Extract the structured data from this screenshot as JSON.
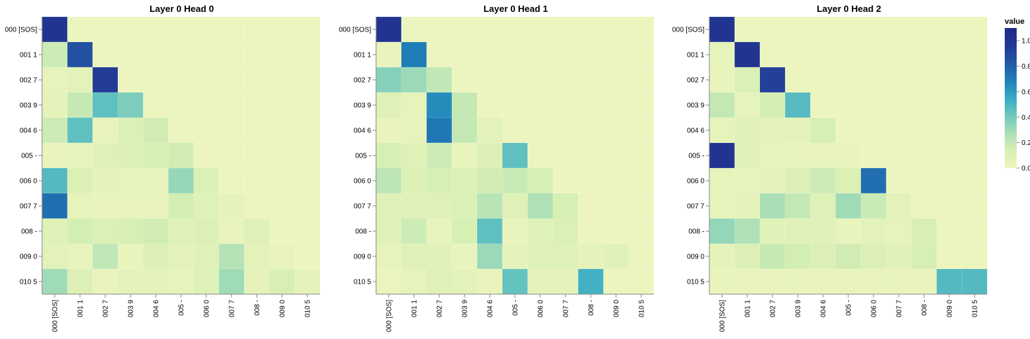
{
  "chart_data": {
    "type": "heatmap",
    "tokens": [
      "000 [SOS]",
      "001 1",
      "002 7",
      "003 9",
      "004 6",
      "005 -",
      "006 0",
      "007 7",
      "008 -",
      "009 0",
      "010 5"
    ],
    "legend": {
      "title": "value",
      "ticks": [
        "1.0",
        "0.8",
        "0.6",
        "0.4",
        "0.2",
        "0.0"
      ],
      "tick_values": [
        1.0,
        0.8,
        0.6,
        0.4,
        0.2,
        0.0
      ],
      "domain": [
        0,
        1.1
      ],
      "colors": [
        "#eff6bf",
        "#d7efb3",
        "#abdfb6",
        "#6fc8be",
        "#37aac4",
        "#1f81b9",
        "#2457a5",
        "#223994",
        "#1e2b85"
      ]
    },
    "panels": [
      {
        "title": "Layer 0 Head 0",
        "values": [
          [
            1.0,
            0.02,
            0.01,
            0.01,
            0.01,
            0.01,
            0.01,
            0.01,
            0.01,
            0.01,
            0.01
          ],
          [
            0.17,
            0.85,
            0.01,
            0.01,
            0.01,
            0.01,
            0.01,
            0.01,
            0.01,
            0.01,
            0.01
          ],
          [
            0.05,
            0.07,
            0.95,
            0.01,
            0.01,
            0.01,
            0.01,
            0.01,
            0.01,
            0.01,
            0.01
          ],
          [
            0.06,
            0.19,
            0.45,
            0.38,
            0.01,
            0.01,
            0.01,
            0.01,
            0.01,
            0.01,
            0.01
          ],
          [
            0.17,
            0.45,
            0.04,
            0.12,
            0.16,
            0.01,
            0.01,
            0.01,
            0.01,
            0.01,
            0.01
          ],
          [
            0.04,
            0.05,
            0.09,
            0.12,
            0.14,
            0.16,
            0.01,
            0.01,
            0.01,
            0.01,
            0.01
          ],
          [
            0.48,
            0.12,
            0.06,
            0.05,
            0.05,
            0.32,
            0.12,
            0.01,
            0.01,
            0.01,
            0.01
          ],
          [
            0.75,
            0.05,
            0.04,
            0.04,
            0.04,
            0.15,
            0.1,
            0.06,
            0.01,
            0.01,
            0.01
          ],
          [
            0.09,
            0.15,
            0.12,
            0.14,
            0.16,
            0.1,
            0.11,
            0.04,
            0.09,
            0.01,
            0.01
          ],
          [
            0.07,
            0.05,
            0.21,
            0.04,
            0.11,
            0.07,
            0.09,
            0.24,
            0.07,
            0.04,
            0.01
          ],
          [
            0.3,
            0.11,
            0.04,
            0.07,
            0.07,
            0.05,
            0.1,
            0.3,
            0.06,
            0.13,
            0.06
          ]
        ]
      },
      {
        "title": "Layer 0 Head 1",
        "values": [
          [
            1.0,
            0.02,
            0.01,
            0.01,
            0.01,
            0.01,
            0.01,
            0.01,
            0.01,
            0.01,
            0.01
          ],
          [
            0.04,
            0.7,
            0.01,
            0.01,
            0.01,
            0.01,
            0.01,
            0.01,
            0.01,
            0.01,
            0.01
          ],
          [
            0.36,
            0.31,
            0.21,
            0.01,
            0.01,
            0.01,
            0.01,
            0.01,
            0.01,
            0.01,
            0.01
          ],
          [
            0.09,
            0.05,
            0.65,
            0.2,
            0.01,
            0.01,
            0.01,
            0.01,
            0.01,
            0.01,
            0.01
          ],
          [
            0.04,
            0.05,
            0.72,
            0.2,
            0.07,
            0.01,
            0.01,
            0.01,
            0.01,
            0.01,
            0.01
          ],
          [
            0.14,
            0.09,
            0.17,
            0.04,
            0.11,
            0.45,
            0.01,
            0.01,
            0.01,
            0.01,
            0.01
          ],
          [
            0.22,
            0.11,
            0.14,
            0.11,
            0.16,
            0.18,
            0.14,
            0.01,
            0.01,
            0.01,
            0.01
          ],
          [
            0.09,
            0.09,
            0.09,
            0.12,
            0.23,
            0.09,
            0.26,
            0.14,
            0.01,
            0.01,
            0.01
          ],
          [
            0.09,
            0.17,
            0.05,
            0.13,
            0.45,
            0.04,
            0.1,
            0.12,
            0.01,
            0.01,
            0.01
          ],
          [
            0.05,
            0.09,
            0.08,
            0.04,
            0.31,
            0.06,
            0.1,
            0.1,
            0.06,
            0.08,
            0.01
          ],
          [
            0.03,
            0.05,
            0.09,
            0.07,
            0.04,
            0.44,
            0.06,
            0.06,
            0.52,
            0.02,
            0.01
          ]
        ]
      },
      {
        "title": "Layer 0 Head 2",
        "values": [
          [
            1.0,
            0.02,
            0.01,
            0.01,
            0.01,
            0.01,
            0.01,
            0.01,
            0.01,
            0.01,
            0.01
          ],
          [
            0.05,
            1.0,
            0.01,
            0.01,
            0.01,
            0.01,
            0.01,
            0.01,
            0.01,
            0.01,
            0.01
          ],
          [
            0.04,
            0.12,
            0.93,
            0.01,
            0.01,
            0.01,
            0.01,
            0.01,
            0.01,
            0.01,
            0.01
          ],
          [
            0.2,
            0.05,
            0.15,
            0.47,
            0.01,
            0.01,
            0.01,
            0.01,
            0.01,
            0.01,
            0.01
          ],
          [
            0.05,
            0.08,
            0.06,
            0.07,
            0.14,
            0.01,
            0.01,
            0.01,
            0.01,
            0.01,
            0.01
          ],
          [
            1.0,
            0.08,
            0.05,
            0.04,
            0.04,
            0.04,
            0.01,
            0.01,
            0.01,
            0.01,
            0.01
          ],
          [
            0.05,
            0.05,
            0.07,
            0.11,
            0.17,
            0.12,
            0.75,
            0.01,
            0.01,
            0.01,
            0.01
          ],
          [
            0.05,
            0.06,
            0.28,
            0.2,
            0.1,
            0.3,
            0.18,
            0.07,
            0.01,
            0.01,
            0.01
          ],
          [
            0.33,
            0.26,
            0.08,
            0.09,
            0.08,
            0.04,
            0.07,
            0.05,
            0.13,
            0.01,
            0.01
          ],
          [
            0.06,
            0.11,
            0.19,
            0.15,
            0.11,
            0.16,
            0.11,
            0.08,
            0.14,
            0.01,
            0.01
          ],
          [
            0.04,
            0.04,
            0.04,
            0.04,
            0.04,
            0.04,
            0.04,
            0.04,
            0.04,
            0.48,
            0.48
          ]
        ]
      }
    ]
  }
}
